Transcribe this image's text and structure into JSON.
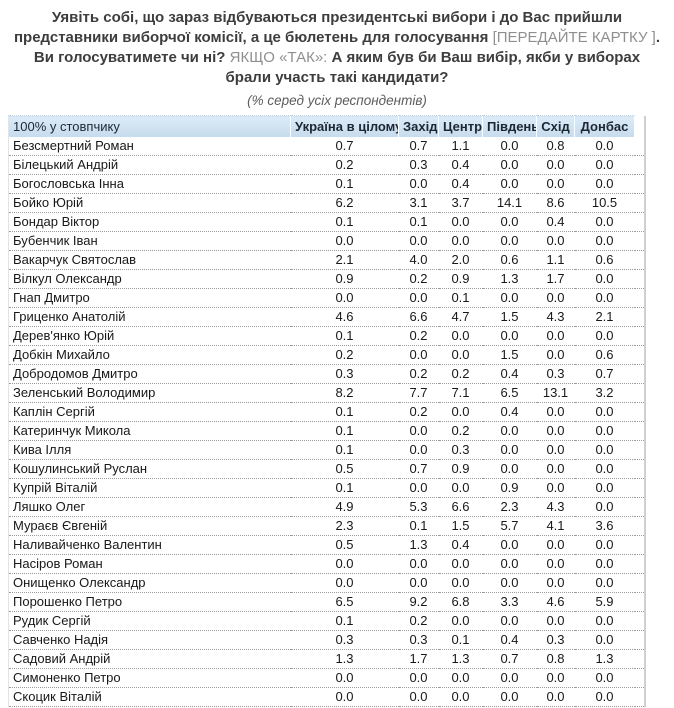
{
  "question": {
    "segments": [
      {
        "text": "Уявіть собі, що зараз відбуваються президентські вибори і до Вас прийшли представники виборчої комісії, а це бюлетень для голосування "
      },
      {
        "text": "[ПЕРЕДАЙТЕ КАРТКУ ]"
      },
      {
        "text": ". Ви голосуватимете чи ні? "
      },
      {
        "text": "ЯКЩО «ТАК»: "
      },
      {
        "text": "А яким був би Ваш вибір, якби у виборах брали участь такі кандидати?"
      }
    ],
    "subtitle": "(% серед усіх респондентів)"
  },
  "chart_data": {
    "type": "table",
    "corner_header": "100% у стовпчику",
    "columns": [
      "Україна в цілому",
      "Захід",
      "Центр",
      "Південь",
      "Схід",
      "Донбас"
    ],
    "rows": [
      {
        "name": "Безсмертний Роман",
        "values": [
          "0.7",
          "0.7",
          "1.1",
          "0.0",
          "0.8",
          "0.0"
        ]
      },
      {
        "name": "Білецький Андрій",
        "values": [
          "0.2",
          "0.3",
          "0.4",
          "0.0",
          "0.0",
          "0.0"
        ]
      },
      {
        "name": "Богословська Інна",
        "values": [
          "0.1",
          "0.0",
          "0.4",
          "0.0",
          "0.0",
          "0.0"
        ]
      },
      {
        "name": "Бойко Юрій",
        "values": [
          "6.2",
          "3.1",
          "3.7",
          "14.1",
          "8.6",
          "10.5"
        ]
      },
      {
        "name": "Бондар Віктор",
        "values": [
          "0.1",
          "0.1",
          "0.0",
          "0.0",
          "0.4",
          "0.0"
        ]
      },
      {
        "name": "Бубенчик Іван",
        "values": [
          "0.0",
          "0.0",
          "0.0",
          "0.0",
          "0.0",
          "0.0"
        ]
      },
      {
        "name": "Вакарчук Святослав",
        "values": [
          "2.1",
          "4.0",
          "2.0",
          "0.6",
          "1.1",
          "0.6"
        ]
      },
      {
        "name": "Вілкул Олександр",
        "values": [
          "0.9",
          "0.2",
          "0.9",
          "1.3",
          "1.7",
          "0.0"
        ]
      },
      {
        "name": "Гнап Дмитро",
        "values": [
          "0.0",
          "0.0",
          "0.1",
          "0.0",
          "0.0",
          "0.0"
        ]
      },
      {
        "name": "Гриценко Анатолій",
        "values": [
          "4.6",
          "6.6",
          "4.7",
          "1.5",
          "4.3",
          "2.1"
        ]
      },
      {
        "name": "Дерев'янко Юрій",
        "values": [
          "0.1",
          "0.2",
          "0.0",
          "0.0",
          "0.0",
          "0.0"
        ]
      },
      {
        "name": "Добкін Михайло",
        "values": [
          "0.2",
          "0.0",
          "0.0",
          "1.5",
          "0.0",
          "0.6"
        ]
      },
      {
        "name": "Добродомов Дмитро",
        "values": [
          "0.3",
          "0.2",
          "0.2",
          "0.4",
          "0.3",
          "0.7"
        ]
      },
      {
        "name": "Зеленський Володимир",
        "values": [
          "8.2",
          "7.7",
          "7.1",
          "6.5",
          "13.1",
          "3.2"
        ]
      },
      {
        "name": "Каплін Сергій",
        "values": [
          "0.1",
          "0.2",
          "0.0",
          "0.4",
          "0.0",
          "0.0"
        ]
      },
      {
        "name": "Катеринчук Микола",
        "values": [
          "0.1",
          "0.0",
          "0.2",
          "0.0",
          "0.0",
          "0.0"
        ]
      },
      {
        "name": "Кива Ілля",
        "values": [
          "0.1",
          "0.0",
          "0.3",
          "0.0",
          "0.0",
          "0.0"
        ]
      },
      {
        "name": "Кошулинський Руслан",
        "values": [
          "0.5",
          "0.7",
          "0.9",
          "0.0",
          "0.0",
          "0.0"
        ]
      },
      {
        "name": "Купрій Віталій",
        "values": [
          "0.1",
          "0.0",
          "0.0",
          "0.9",
          "0.0",
          "0.0"
        ]
      },
      {
        "name": "Ляшко Олег",
        "values": [
          "4.9",
          "5.3",
          "6.6",
          "2.3",
          "4.3",
          "0.0"
        ]
      },
      {
        "name": "Мураєв Євгеній",
        "values": [
          "2.3",
          "0.1",
          "1.5",
          "5.7",
          "4.1",
          "3.6"
        ]
      },
      {
        "name": "Наливайченко Валентин",
        "values": [
          "0.5",
          "1.3",
          "0.4",
          "0.0",
          "0.0",
          "0.0"
        ]
      },
      {
        "name": "Насіров Роман",
        "values": [
          "0.0",
          "0.0",
          "0.0",
          "0.0",
          "0.0",
          "0.0"
        ]
      },
      {
        "name": "Онищенко Олександр",
        "values": [
          "0.0",
          "0.0",
          "0.0",
          "0.0",
          "0.0",
          "0.0"
        ]
      },
      {
        "name": "Порошенко Петро",
        "values": [
          "6.5",
          "9.2",
          "6.8",
          "3.3",
          "4.6",
          "5.9"
        ]
      },
      {
        "name": "Рудик Сергій",
        "values": [
          "0.1",
          "0.2",
          "0.0",
          "0.0",
          "0.0",
          "0.0"
        ]
      },
      {
        "name": "Савченко Надія",
        "values": [
          "0.3",
          "0.3",
          "0.1",
          "0.4",
          "0.3",
          "0.0"
        ]
      },
      {
        "name": "Садовий Андрій",
        "values": [
          "1.3",
          "1.7",
          "1.3",
          "0.7",
          "0.8",
          "1.3"
        ]
      },
      {
        "name": "Симоненко Петро",
        "values": [
          "0.0",
          "0.0",
          "0.0",
          "0.0",
          "0.0",
          "0.0"
        ]
      },
      {
        "name": "Скоцик Віталій",
        "values": [
          "0.0",
          "0.0",
          "0.0",
          "0.0",
          "0.0",
          "0.0"
        ]
      }
    ]
  },
  "colors": {
    "header_bg": "#c9ddee",
    "header_text": "#1d2732",
    "row_border": "#9b9b9b",
    "question_text": "#3d3d3d",
    "question_muted": "#8f8f8f",
    "subtitle_text": "#5c5c5c"
  }
}
